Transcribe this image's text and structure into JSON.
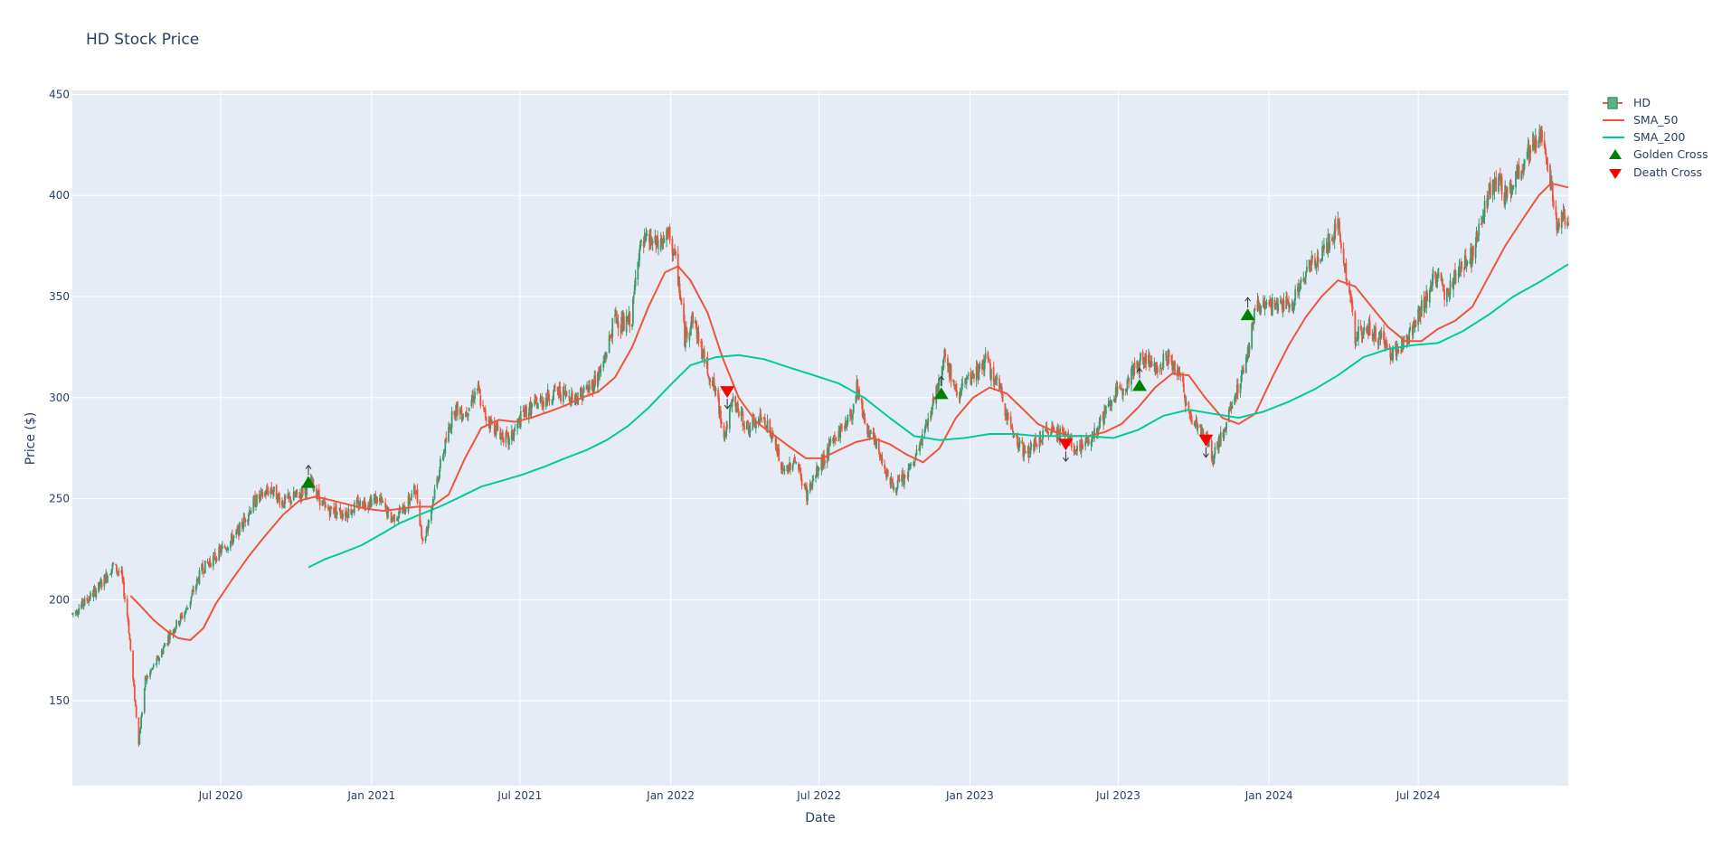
{
  "chart_data": {
    "type": "candlestick",
    "title": "HD Stock Price",
    "xlabel": "Date",
    "ylabel": "Price ($)",
    "x_range": [
      "2020-01-02",
      "2024-12-31"
    ],
    "ylim": [
      108,
      452
    ],
    "y_ticks": [
      150,
      200,
      250,
      300,
      350,
      400,
      450
    ],
    "x_ticks": [
      {
        "date": "2020-07-01",
        "label": "Jul 2020"
      },
      {
        "date": "2021-01-01",
        "label": "Jan 2021"
      },
      {
        "date": "2021-07-01",
        "label": "Jul 2021"
      },
      {
        "date": "2022-01-01",
        "label": "Jan 2022"
      },
      {
        "date": "2022-07-01",
        "label": "Jul 2022"
      },
      {
        "date": "2023-01-01",
        "label": "Jan 2023"
      },
      {
        "date": "2023-07-01",
        "label": "Jul 2023"
      },
      {
        "date": "2024-01-01",
        "label": "Jan 2024"
      },
      {
        "date": "2024-07-01",
        "label": "Jul 2024"
      }
    ],
    "grid": true,
    "legend_position": "top-right",
    "colors": {
      "plot_bg": "#e5ecf6",
      "increasing": "#3d9970",
      "decreasing": "#ef553b",
      "sma_50": "#ef553b",
      "sma_200": "#00cc96",
      "golden_cross": "#008000",
      "death_cross": "#ff0000"
    },
    "price_path": [
      [
        "2020-01-02",
        193
      ],
      [
        "2020-01-20",
        200
      ],
      [
        "2020-02-05",
        207
      ],
      [
        "2020-02-21",
        217
      ],
      [
        "2020-03-02",
        212
      ],
      [
        "2020-03-10",
        190
      ],
      [
        "2020-03-16",
        160
      ],
      [
        "2020-03-23",
        130
      ],
      [
        "2020-03-31",
        160
      ],
      [
        "2020-04-15",
        170
      ],
      [
        "2020-04-30",
        183
      ],
      [
        "2020-05-20",
        195
      ],
      [
        "2020-06-08",
        215
      ],
      [
        "2020-06-26",
        222
      ],
      [
        "2020-07-20",
        232
      ],
      [
        "2020-08-10",
        248
      ],
      [
        "2020-08-31",
        255
      ],
      [
        "2020-09-15",
        248
      ],
      [
        "2020-10-05",
        252
      ],
      [
        "2020-10-20",
        258
      ],
      [
        "2020-11-05",
        245
      ],
      [
        "2020-12-01",
        243
      ],
      [
        "2020-12-20",
        248
      ],
      [
        "2021-01-10",
        250
      ],
      [
        "2021-01-25",
        240
      ],
      [
        "2021-02-10",
        245
      ],
      [
        "2021-02-24",
        255
      ],
      [
        "2021-03-05",
        228
      ],
      [
        "2021-03-12",
        240
      ],
      [
        "2021-03-25",
        265
      ],
      [
        "2021-04-12",
        295
      ],
      [
        "2021-04-25",
        292
      ],
      [
        "2021-05-10",
        305
      ],
      [
        "2021-05-18",
        292
      ],
      [
        "2021-06-01",
        285
      ],
      [
        "2021-06-18",
        278
      ],
      [
        "2021-07-05",
        292
      ],
      [
        "2021-07-25",
        298
      ],
      [
        "2021-08-15",
        303
      ],
      [
        "2021-09-05",
        300
      ],
      [
        "2021-09-25",
        305
      ],
      [
        "2021-10-10",
        315
      ],
      [
        "2021-10-25",
        340
      ],
      [
        "2021-11-05",
        335
      ],
      [
        "2021-11-15",
        340
      ],
      [
        "2021-11-22",
        372
      ],
      [
        "2021-12-05",
        378
      ],
      [
        "2021-12-15",
        375
      ],
      [
        "2021-12-31",
        380
      ],
      [
        "2022-01-10",
        360
      ],
      [
        "2022-01-18",
        330
      ],
      [
        "2022-01-28",
        340
      ],
      [
        "2022-02-10",
        320
      ],
      [
        "2022-02-23",
        305
      ],
      [
        "2022-03-08",
        282
      ],
      [
        "2022-03-18",
        298
      ],
      [
        "2022-04-05",
        285
      ],
      [
        "2022-04-25",
        290
      ],
      [
        "2022-05-10",
        275
      ],
      [
        "2022-05-18",
        262
      ],
      [
        "2022-06-01",
        270
      ],
      [
        "2022-06-16",
        252
      ],
      [
        "2022-07-01",
        265
      ],
      [
        "2022-07-20",
        280
      ],
      [
        "2022-08-10",
        292
      ],
      [
        "2022-08-16",
        306
      ],
      [
        "2022-08-26",
        288
      ],
      [
        "2022-09-15",
        270
      ],
      [
        "2022-09-30",
        255
      ],
      [
        "2022-10-13",
        260
      ],
      [
        "2022-10-25",
        268
      ],
      [
        "2022-11-08",
        285
      ],
      [
        "2022-11-22",
        305
      ],
      [
        "2022-12-01",
        322
      ],
      [
        "2022-12-15",
        302
      ],
      [
        "2023-01-05",
        310
      ],
      [
        "2023-01-20",
        318
      ],
      [
        "2023-02-05",
        305
      ],
      [
        "2023-02-23",
        282
      ],
      [
        "2023-03-10",
        272
      ],
      [
        "2023-03-25",
        278
      ],
      [
        "2023-04-10",
        285
      ],
      [
        "2023-04-25",
        282
      ],
      [
        "2023-05-10",
        275
      ],
      [
        "2023-05-25",
        278
      ],
      [
        "2023-06-10",
        288
      ],
      [
        "2023-06-25",
        300
      ],
      [
        "2023-07-15",
        310
      ],
      [
        "2023-07-31",
        320
      ],
      [
        "2023-08-15",
        315
      ],
      [
        "2023-08-31",
        320
      ],
      [
        "2023-09-15",
        310
      ],
      [
        "2023-09-25",
        292
      ],
      [
        "2023-10-10",
        285
      ],
      [
        "2023-10-25",
        270
      ],
      [
        "2023-11-08",
        285
      ],
      [
        "2023-11-20",
        300
      ],
      [
        "2023-12-05",
        320
      ],
      [
        "2023-12-15",
        345
      ],
      [
        "2024-01-10",
        345
      ],
      [
        "2024-01-31",
        348
      ],
      [
        "2024-02-20",
        365
      ],
      [
        "2024-03-10",
        375
      ],
      [
        "2024-03-25",
        385
      ],
      [
        "2024-04-05",
        360
      ],
      [
        "2024-04-15",
        330
      ],
      [
        "2024-04-30",
        335
      ],
      [
        "2024-05-15",
        330
      ],
      [
        "2024-05-31",
        322
      ],
      [
        "2024-06-15",
        328
      ],
      [
        "2024-07-01",
        340
      ],
      [
        "2024-07-20",
        360
      ],
      [
        "2024-08-05",
        350
      ],
      [
        "2024-08-20",
        365
      ],
      [
        "2024-09-05",
        370
      ],
      [
        "2024-09-20",
        395
      ],
      [
        "2024-10-05",
        408
      ],
      [
        "2024-10-15",
        400
      ],
      [
        "2024-10-31",
        410
      ],
      [
        "2024-11-15",
        425
      ],
      [
        "2024-11-29",
        430
      ],
      [
        "2024-12-10",
        405
      ],
      [
        "2024-12-18",
        385
      ],
      [
        "2024-12-31",
        390
      ]
    ],
    "series": [
      {
        "name": "SMA_50",
        "x": [
          "2020-03-13",
          "2020-03-25",
          "2020-04-10",
          "2020-04-25",
          "2020-05-10",
          "2020-05-25",
          "2020-06-10",
          "2020-06-25",
          "2020-07-15",
          "2020-08-05",
          "2020-08-25",
          "2020-09-15",
          "2020-10-05",
          "2020-10-25",
          "2020-11-15",
          "2020-12-05",
          "2020-12-25",
          "2021-01-15",
          "2021-02-05",
          "2021-02-25",
          "2021-03-15",
          "2021-04-05",
          "2021-04-25",
          "2021-05-15",
          "2021-06-05",
          "2021-06-25",
          "2021-07-15",
          "2021-08-05",
          "2021-08-25",
          "2021-09-15",
          "2021-10-05",
          "2021-10-25",
          "2021-11-15",
          "2021-12-05",
          "2021-12-25",
          "2022-01-10",
          "2022-01-25",
          "2022-02-15",
          "2022-03-05",
          "2022-03-25",
          "2022-04-15",
          "2022-05-05",
          "2022-05-25",
          "2022-06-15",
          "2022-07-05",
          "2022-07-25",
          "2022-08-15",
          "2022-09-05",
          "2022-09-25",
          "2022-10-15",
          "2022-11-05",
          "2022-11-25",
          "2022-12-15",
          "2023-01-05",
          "2023-01-25",
          "2023-02-15",
          "2023-03-05",
          "2023-03-25",
          "2023-04-15",
          "2023-05-05",
          "2023-05-25",
          "2023-06-15",
          "2023-07-05",
          "2023-07-25",
          "2023-08-15",
          "2023-09-05",
          "2023-09-25",
          "2023-10-15",
          "2023-11-05",
          "2023-11-25",
          "2023-12-15",
          "2024-01-05",
          "2024-01-25",
          "2024-02-15",
          "2024-03-05",
          "2024-03-25",
          "2024-04-15",
          "2024-05-05",
          "2024-05-25",
          "2024-06-15",
          "2024-07-05",
          "2024-07-25",
          "2024-08-15",
          "2024-09-05",
          "2024-09-25",
          "2024-10-15",
          "2024-11-05",
          "2024-11-25",
          "2024-12-10",
          "2024-12-31"
        ],
        "values": [
          202,
          197,
          190,
          185,
          181,
          180,
          186,
          198,
          210,
          222,
          232,
          242,
          249,
          251,
          249,
          247,
          245,
          244,
          245,
          246,
          246,
          252,
          270,
          285,
          289,
          288,
          290,
          293,
          296,
          300,
          303,
          310,
          325,
          345,
          362,
          365,
          358,
          342,
          320,
          300,
          288,
          282,
          276,
          270,
          270,
          274,
          278,
          280,
          277,
          272,
          268,
          275,
          290,
          300,
          305,
          302,
          295,
          287,
          283,
          281,
          281,
          283,
          287,
          295,
          305,
          312,
          311,
          300,
          290,
          287,
          292,
          310,
          326,
          340,
          350,
          358,
          355,
          345,
          335,
          328,
          328,
          334,
          338,
          345,
          360,
          375,
          388,
          400,
          406,
          404
        ]
      },
      {
        "name": "SMA_200",
        "x": [
          "2020-10-16",
          "2020-11-05",
          "2020-11-25",
          "2020-12-20",
          "2021-01-15",
          "2021-02-05",
          "2021-02-28",
          "2021-03-25",
          "2021-04-20",
          "2021-05-15",
          "2021-06-10",
          "2021-07-05",
          "2021-08-01",
          "2021-08-25",
          "2021-09-20",
          "2021-10-15",
          "2021-11-10",
          "2021-12-05",
          "2021-12-31",
          "2022-01-25",
          "2022-02-25",
          "2022-03-25",
          "2022-04-25",
          "2022-05-25",
          "2022-06-25",
          "2022-07-25",
          "2022-08-25",
          "2022-09-25",
          "2022-10-25",
          "2022-11-25",
          "2022-12-25",
          "2023-01-25",
          "2023-02-25",
          "2023-03-25",
          "2023-04-25",
          "2023-05-25",
          "2023-06-25",
          "2023-07-25",
          "2023-08-25",
          "2023-09-25",
          "2023-10-25",
          "2023-11-25",
          "2023-12-25",
          "2024-01-25",
          "2024-02-25",
          "2024-03-25",
          "2024-04-25",
          "2024-05-25",
          "2024-06-25",
          "2024-07-25",
          "2024-08-25",
          "2024-09-25",
          "2024-10-25",
          "2024-11-25",
          "2024-12-31"
        ],
        "values": [
          216,
          220,
          223,
          227,
          233,
          238,
          242,
          246,
          251,
          256,
          259,
          262,
          266,
          270,
          274,
          279,
          286,
          295,
          306,
          316,
          320,
          321,
          319,
          315,
          311,
          307,
          300,
          290,
          281,
          279,
          280,
          282,
          282,
          281,
          281,
          281,
          280,
          284,
          291,
          294,
          292,
          290,
          293,
          298,
          304,
          311,
          320,
          324,
          326,
          327,
          333,
          341,
          350,
          357,
          366
        ]
      }
    ],
    "golden_cross": [
      {
        "date": "2020-10-16",
        "value": 258
      },
      {
        "date": "2022-11-27",
        "value": 302
      },
      {
        "date": "2023-07-27",
        "value": 306
      },
      {
        "date": "2023-12-06",
        "value": 341
      }
    ],
    "death_cross": [
      {
        "date": "2022-03-11",
        "value": 303
      },
      {
        "date": "2023-04-28",
        "value": 277
      },
      {
        "date": "2023-10-16",
        "value": 279
      }
    ],
    "legend": [
      "HD",
      "SMA_50",
      "SMA_200",
      "Golden Cross",
      "Death Cross"
    ]
  }
}
